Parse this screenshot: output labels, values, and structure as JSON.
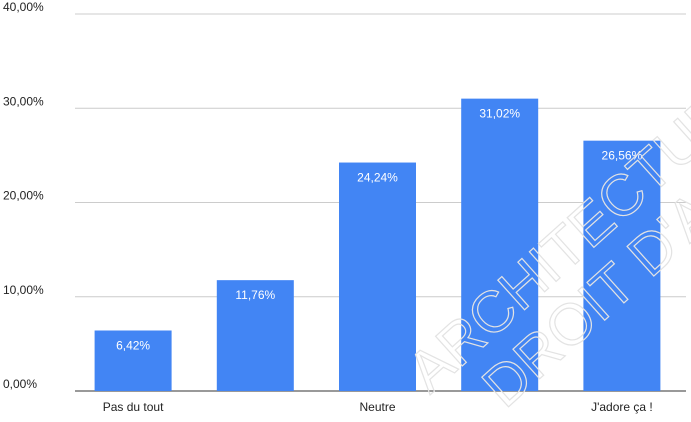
{
  "chart_data": {
    "type": "bar",
    "categories": [
      "Pas du tout",
      "",
      "Neutre",
      "",
      "J'adore ça !"
    ],
    "values": [
      6.42,
      11.76,
      24.24,
      31.02,
      26.56
    ],
    "value_labels": [
      "6,42%",
      "11,76%",
      "24,24%",
      "31,02%",
      "26,56%"
    ],
    "yticks": [
      "0,00%",
      "10,00%",
      "20,00%",
      "30,00%",
      "40,00%"
    ],
    "ylim": [
      0,
      40
    ],
    "title": "",
    "xlabel": "",
    "ylabel": "",
    "grid": true,
    "legend": "none",
    "bar_color": "#4285F4",
    "label_color": "#ffffff",
    "grid_color": "#cccccc"
  },
  "watermark": {
    "line1": "ARCHITECTURE",
    "line2": "DROIT D'AUTEUR",
    "color": "#e6e6e6"
  }
}
